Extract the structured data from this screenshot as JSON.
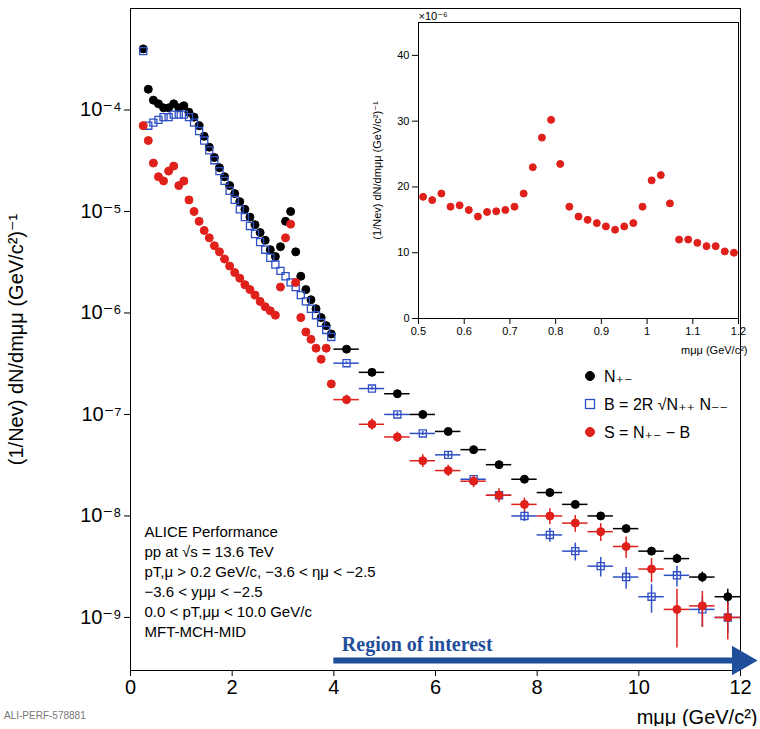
{
  "chart_data": [
    {
      "type": "scatter",
      "x_label": "mμμ (GeV/c²)",
      "y_label": "(1/Nev) dN/dmμμ (GeV/c²)⁻¹",
      "log": "y",
      "grid": false,
      "legend": "right",
      "xlim": [
        0,
        12
      ],
      "xticks": [
        0,
        2,
        4,
        6,
        8,
        10,
        12
      ],
      "ylim": [
        3e-10,
        0.001
      ],
      "yticks": [
        {
          "value": 1e-09,
          "label": "10⁻⁹"
        },
        {
          "value": 1e-08,
          "label": "10⁻⁸"
        },
        {
          "value": 1e-07,
          "label": "10⁻⁷"
        },
        {
          "value": 1e-06,
          "label": "10⁻⁶"
        },
        {
          "value": 1e-05,
          "label": "10⁻⁵"
        },
        {
          "value": 0.0001,
          "label": "10⁻⁴"
        }
      ],
      "annotations": [
        "ALICE Performance",
        "pp at √s = 13.6 TeV",
        "pT,μ > 0.2 GeV/c, −3.6 < ημ < −2.5",
        "−3.6 < yμμ < −2.5",
        "0.0 < pT,μμ < 10.0 GeV/c",
        "MFT-MCH-MID"
      ],
      "arrow": {
        "text": "Region of interest",
        "from": 4,
        "to": 12,
        "color": "#1f4e9a"
      },
      "footer": "ALI-PERF-578881",
      "x": [
        0.25,
        0.35,
        0.45,
        0.55,
        0.65,
        0.75,
        0.85,
        0.95,
        1.05,
        1.15,
        1.25,
        1.35,
        1.45,
        1.55,
        1.65,
        1.75,
        1.85,
        1.95,
        2.05,
        2.15,
        2.25,
        2.35,
        2.45,
        2.55,
        2.65,
        2.75,
        2.85,
        2.95,
        3.05,
        3.15,
        3.25,
        3.35,
        3.45,
        3.55,
        3.65,
        3.75,
        3.85,
        3.95,
        4.25,
        4.75,
        5.25,
        5.75,
        6.25,
        6.75,
        7.25,
        7.75,
        8.25,
        8.75,
        9.25,
        9.75,
        10.25,
        10.75,
        11.25,
        11.75
      ],
      "x_err": [
        null,
        null,
        null,
        null,
        null,
        null,
        null,
        null,
        null,
        null,
        null,
        null,
        null,
        null,
        null,
        null,
        null,
        null,
        null,
        null,
        null,
        null,
        null,
        null,
        null,
        null,
        null,
        null,
        null,
        null,
        null,
        null,
        null,
        null,
        null,
        null,
        null,
        null,
        0.25,
        0.25,
        0.25,
        0.25,
        0.25,
        0.25,
        0.25,
        0.25,
        0.25,
        0.25,
        0.25,
        0.25,
        0.25,
        0.25,
        0.25,
        0.25
      ],
      "series": [
        {
          "name": "N₊₋",
          "color": "#000000",
          "marker": "circle",
          "values": [
            0.0004,
            0.00016,
            0.000125,
            0.000115,
            0.000105,
            0.000105,
            0.000115,
            0.000105,
            0.00011,
            9.5e-05,
            8.5e-05,
            7e-05,
            5.5e-05,
            4.3e-05,
            3.4e-05,
            2.7e-05,
            2.2e-05,
            1.8e-05,
            1.5e-05,
            1.25e-05,
            1.05e-05,
            8.8e-06,
            7.4e-06,
            6.2e-06,
            5.2e-06,
            4.2e-06,
            3.6e-06,
            4.5e-06,
            8e-06,
            1e-05,
            4e-06,
            2.3e-06,
            1.7e-06,
            1.35e-06,
            1.1e-06,
            9e-07,
            7.5e-07,
            6.2e-07,
            4.4e-07,
            2.6e-07,
            1.6e-07,
            1e-07,
            6.8e-08,
            4.5e-08,
            3.2e-08,
            2.3e-08,
            1.7e-08,
            1.3e-08,
            1e-08,
            7.5e-09,
            4.5e-09,
            3.8e-09,
            2.5e-09,
            1.6e-09
          ],
          "y_err": [
            null,
            null,
            null,
            null,
            null,
            null,
            null,
            null,
            null,
            null,
            null,
            null,
            null,
            null,
            null,
            null,
            null,
            null,
            null,
            null,
            null,
            null,
            null,
            null,
            null,
            null,
            null,
            null,
            null,
            null,
            null,
            null,
            null,
            null,
            null,
            null,
            null,
            null,
            1e-08,
            7e-09,
            5e-09,
            3e-09,
            2e-09,
            1.5e-09,
            1.2e-09,
            1e-09,
            8e-10,
            7e-10,
            6e-10,
            5e-10,
            4e-10,
            4e-10,
            3e-10,
            3e-10
          ]
        },
        {
          "name": "B = 2R √N₊₊ N₋₋",
          "color": "#2f4fc4",
          "marker": "square_open",
          "values": [
            0.00038,
            7e-05,
            7.5e-05,
            8e-05,
            8.5e-05,
            8.5e-05,
            9e-05,
            9e-05,
            9e-05,
            8.5e-05,
            7.5e-05,
            6.2e-05,
            5e-05,
            4e-05,
            3.2e-05,
            2.5e-05,
            2e-05,
            1.6e-05,
            1.3e-05,
            1.05e-05,
            8.8e-06,
            7.2e-06,
            6e-06,
            5e-06,
            4.2e-06,
            3.5e-06,
            3e-06,
            2.6e-06,
            2.3e-06,
            2e-06,
            1.8e-06,
            1.5e-06,
            1.3e-06,
            1.1e-06,
            9.5e-07,
            8e-07,
            6.8e-07,
            5.8e-07,
            3.2e-07,
            1.8e-07,
            1e-07,
            6.5e-08,
            4e-08,
            2.3e-08,
            1.6e-08,
            1e-08,
            6.5e-09,
            4.5e-09,
            3.2e-09,
            2.5e-09,
            1.6e-09,
            2.6e-09,
            1.2e-09,
            1e-09
          ],
          "y_err": [
            null,
            null,
            null,
            null,
            null,
            null,
            null,
            null,
            null,
            null,
            null,
            null,
            null,
            null,
            null,
            null,
            null,
            null,
            null,
            null,
            null,
            null,
            null,
            null,
            null,
            null,
            null,
            null,
            null,
            null,
            null,
            null,
            null,
            null,
            null,
            null,
            null,
            null,
            1e-08,
            7e-09,
            5e-09,
            3e-09,
            2.5e-09,
            2e-09,
            1.5e-09,
            1.2e-09,
            1e-09,
            9e-10,
            7e-10,
            6e-10,
            5e-10,
            6e-10,
            4e-10,
            3e-10
          ]
        },
        {
          "name": "S = N₊₋ − B",
          "color": "#e0201b",
          "marker": "circle",
          "values": [
            7e-05,
            5e-05,
            3e-05,
            2.2e-05,
            2e-05,
            2.5e-05,
            2.8e-05,
            1.8e-05,
            2e-05,
            1.3e-05,
            1e-05,
            8e-06,
            6.5e-06,
            5.5e-06,
            4.6e-06,
            4e-06,
            3.4e-06,
            2.9e-06,
            2.5e-06,
            2.2e-06,
            1.9e-06,
            1.7e-06,
            1.5e-06,
            1.3e-06,
            1.15e-06,
            1.05e-06,
            9.5e-07,
            1.8e-06,
            5.5e-06,
            7.5e-06,
            2e-06,
            9e-07,
            6.5e-07,
            5.5e-07,
            4.5e-07,
            3.5e-07,
            4.5e-07,
            2e-07,
            1.4e-07,
            8e-08,
            6e-08,
            3.5e-08,
            2.8e-08,
            2.2e-08,
            1.6e-08,
            1.3e-08,
            1e-08,
            8.5e-09,
            7e-09,
            5e-09,
            3e-09,
            1.2e-09,
            1.3e-09,
            1e-09
          ],
          "y_err": [
            null,
            null,
            null,
            null,
            null,
            null,
            null,
            null,
            null,
            null,
            null,
            null,
            null,
            null,
            null,
            null,
            null,
            null,
            null,
            null,
            null,
            null,
            null,
            null,
            null,
            null,
            null,
            null,
            null,
            null,
            null,
            null,
            null,
            null,
            null,
            null,
            null,
            null,
            1.5e-08,
            1e-08,
            7e-09,
            5e-09,
            3.5e-09,
            3e-09,
            2.5e-09,
            2e-09,
            1.8e-09,
            1.6e-09,
            1.4e-09,
            1.2e-09,
            8e-10,
            7e-10,
            5e-10,
            4e-10
          ]
        }
      ]
    },
    {
      "type": "scatter",
      "x_label": "mμμ (GeV/c²)",
      "y_label": "(1/Nev) dN/dmμμ (GeV/c²)⁻¹",
      "grid": false,
      "xlim": [
        0.5,
        1.2
      ],
      "xticks": [
        0.5,
        0.6,
        0.7,
        0.8,
        0.9,
        1,
        1.1,
        1.2
      ],
      "ylim": [
        0,
        45
      ],
      "yticks": [
        0,
        10,
        20,
        30,
        40
      ],
      "annotations": [
        "×10⁻⁶"
      ],
      "color": "#e0201b",
      "marker": "circle",
      "x": [
        0.51,
        0.53,
        0.55,
        0.57,
        0.59,
        0.61,
        0.63,
        0.65,
        0.67,
        0.69,
        0.71,
        0.73,
        0.75,
        0.77,
        0.79,
        0.81,
        0.83,
        0.85,
        0.87,
        0.89,
        0.91,
        0.93,
        0.95,
        0.97,
        0.99,
        1.01,
        1.03,
        1.05,
        1.07,
        1.09,
        1.11,
        1.13,
        1.15,
        1.17,
        1.19
      ],
      "values": [
        18.5,
        18,
        19,
        17,
        17.2,
        16.5,
        15.5,
        16.2,
        16.3,
        16.5,
        17,
        19,
        23,
        27.5,
        30.2,
        23.5,
        17,
        15.5,
        15,
        14.5,
        14,
        13.5,
        14,
        14.5,
        17,
        21,
        21.8,
        17.5,
        12,
        12,
        11.5,
        11,
        11,
        10.2,
        10
      ]
    }
  ]
}
